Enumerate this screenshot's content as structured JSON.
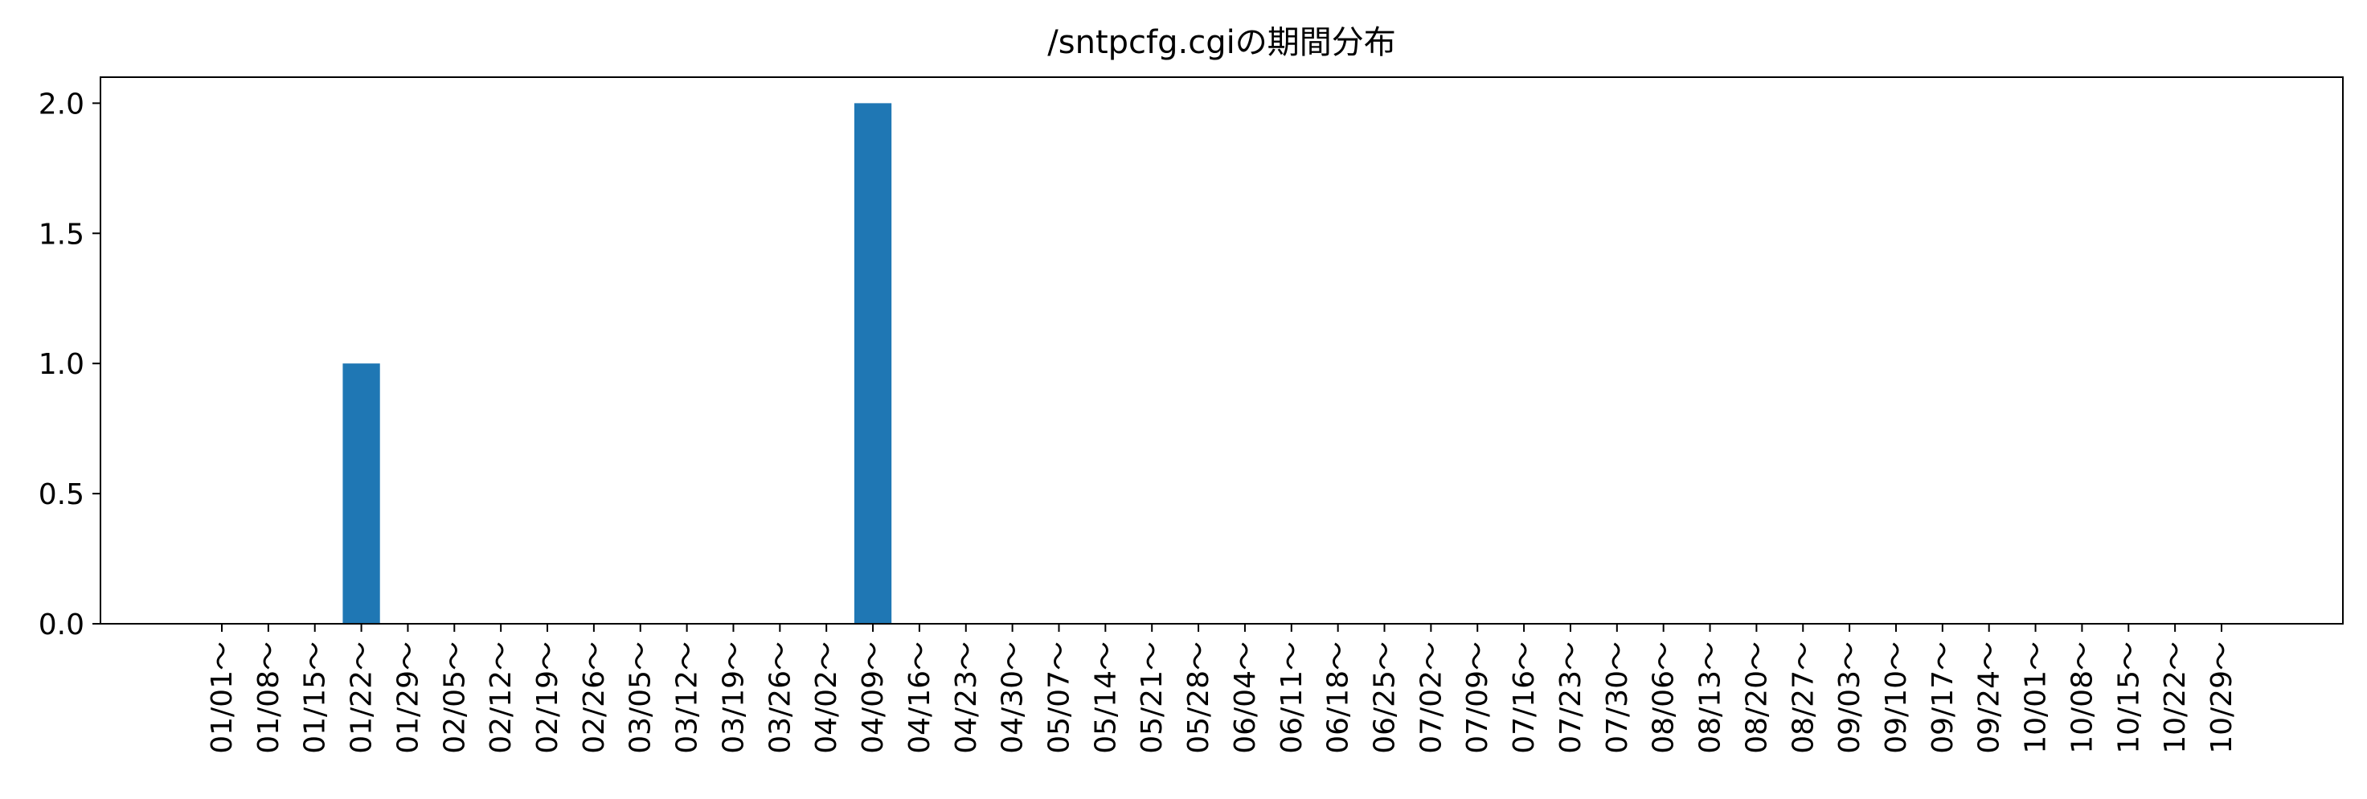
{
  "chart_data": {
    "type": "bar",
    "title": "/sntpcfg.cgiの期間分布",
    "xlabel": "",
    "ylabel": "",
    "ylim": [
      0,
      2.1
    ],
    "yticks": [
      "0.0",
      "0.5",
      "1.0",
      "1.5",
      "2.0"
    ],
    "grid": false,
    "bar_color": "#1f77b4",
    "categories": [
      "01/01～",
      "01/08～",
      "01/15～",
      "01/22～",
      "01/29～",
      "02/05～",
      "02/12～",
      "02/19～",
      "02/26～",
      "03/05～",
      "03/12～",
      "03/19～",
      "03/26～",
      "04/02～",
      "04/09～",
      "04/16～",
      "04/23～",
      "04/30～",
      "05/07～",
      "05/14～",
      "05/21～",
      "05/28～",
      "06/04～",
      "06/11～",
      "06/18～",
      "06/25～",
      "07/02～",
      "07/09～",
      "07/16～",
      "07/23～",
      "07/30～",
      "08/06～",
      "08/13～",
      "08/20～",
      "08/27～",
      "09/03～",
      "09/10～",
      "09/17～",
      "09/24～",
      "10/01～",
      "10/08～",
      "10/15～",
      "10/22～",
      "10/29～"
    ],
    "values": [
      0,
      0,
      0,
      1,
      0,
      0,
      0,
      0,
      0,
      0,
      0,
      0,
      0,
      0,
      2,
      0,
      0,
      0,
      0,
      0,
      0,
      0,
      0,
      0,
      0,
      0,
      0,
      0,
      0,
      0,
      0,
      0,
      0,
      0,
      0,
      0,
      0,
      0,
      0,
      0,
      0,
      0,
      0,
      0
    ]
  }
}
